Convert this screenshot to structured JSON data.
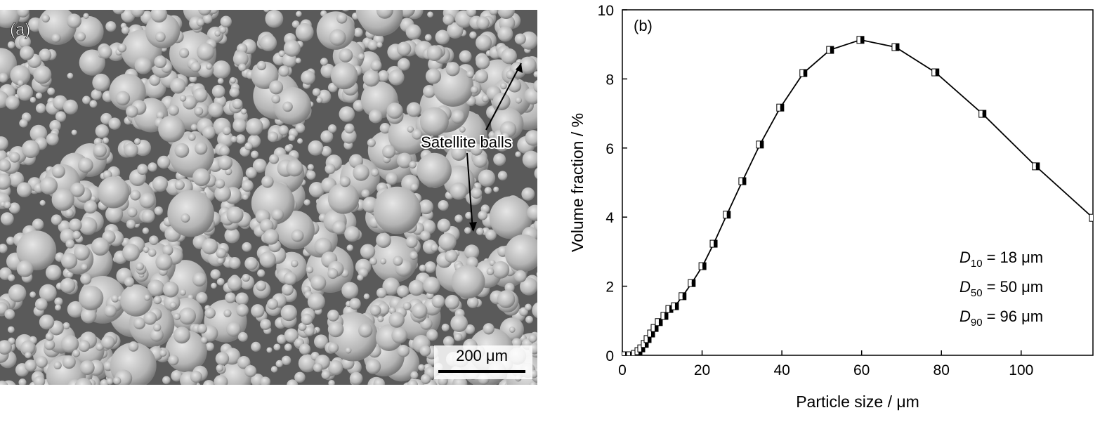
{
  "panel_a": {
    "label": "(a)",
    "annotation": "Satellite balls",
    "scale_bar": "200 μm"
  },
  "chart_data": {
    "type": "line",
    "panel_label": "(b)",
    "x_label": "Particle size / μm",
    "y_label": "Volume fraction / %",
    "xlim": [
      0,
      118
    ],
    "ylim": [
      0,
      10
    ],
    "xticks": [
      0,
      20,
      40,
      60,
      80,
      100
    ],
    "yticks": [
      0,
      2,
      4,
      6,
      8,
      10
    ],
    "x": [
      0.7,
      1.94,
      3.17,
      4.05,
      4.75,
      5.63,
      6.34,
      7.22,
      8.1,
      9.15,
      10.56,
      11.8,
      13.2,
      15.1,
      17.4,
      20.1,
      22.9,
      26.2,
      30.1,
      34.5,
      39.6,
      45.4,
      52.1,
      59.7,
      68.5,
      78.5,
      90.3,
      103.7,
      118
    ],
    "series": [
      {
        "color": "#000000",
        "values": [
          0,
          0,
          0.04,
          0.12,
          0.2,
          0.33,
          0.47,
          0.63,
          0.79,
          0.96,
          1.14,
          1.34,
          1.42,
          1.71,
          2.09,
          2.58,
          3.23,
          4.07,
          5.04,
          6.1,
          7.17,
          8.17,
          8.84,
          9.13,
          8.92,
          8.19,
          6.99,
          5.47,
          3.98
        ]
      }
    ],
    "annotations": [
      {
        "symbol": "D",
        "subscript": "10",
        "text": "= 18 μm"
      },
      {
        "symbol": "D",
        "subscript": "50",
        "text": "= 50 μm"
      },
      {
        "symbol": "D",
        "subscript": "90",
        "text": "= 96 μm"
      }
    ]
  }
}
